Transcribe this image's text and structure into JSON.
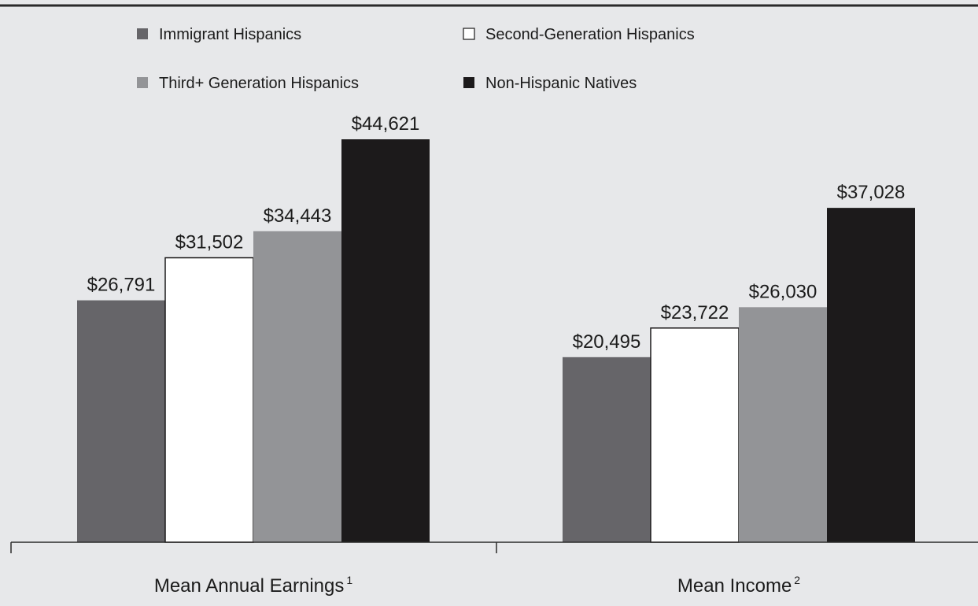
{
  "chart_data": {
    "type": "bar",
    "title": "",
    "xlabel": "",
    "ylabel": "",
    "ylim": [
      0,
      50000
    ],
    "grid": false,
    "legend_position": "top",
    "categories": [
      {
        "label": "Mean Annual Earnings",
        "footnote": "1"
      },
      {
        "label": "Mean Income",
        "footnote": "2"
      }
    ],
    "series": [
      {
        "name": "Immigrant Hispanics",
        "color": "#666569",
        "values": [
          26791,
          20495
        ],
        "labels": [
          "$26,791",
          "$20,495"
        ]
      },
      {
        "name": "Second-Generation Hispanics",
        "color": "#ffffff",
        "values": [
          31502,
          23722
        ],
        "labels": [
          "$31,502",
          "$23,722"
        ]
      },
      {
        "name": "Third+ Generation Hispanics",
        "color": "#939497",
        "values": [
          34443,
          26030
        ],
        "labels": [
          "$34,443",
          "$26,030"
        ]
      },
      {
        "name": "Non-Hispanic Natives",
        "color": "#1c1a1b",
        "values": [
          44621,
          37028
        ],
        "labels": [
          "$44,621",
          "$37,028"
        ]
      }
    ]
  }
}
